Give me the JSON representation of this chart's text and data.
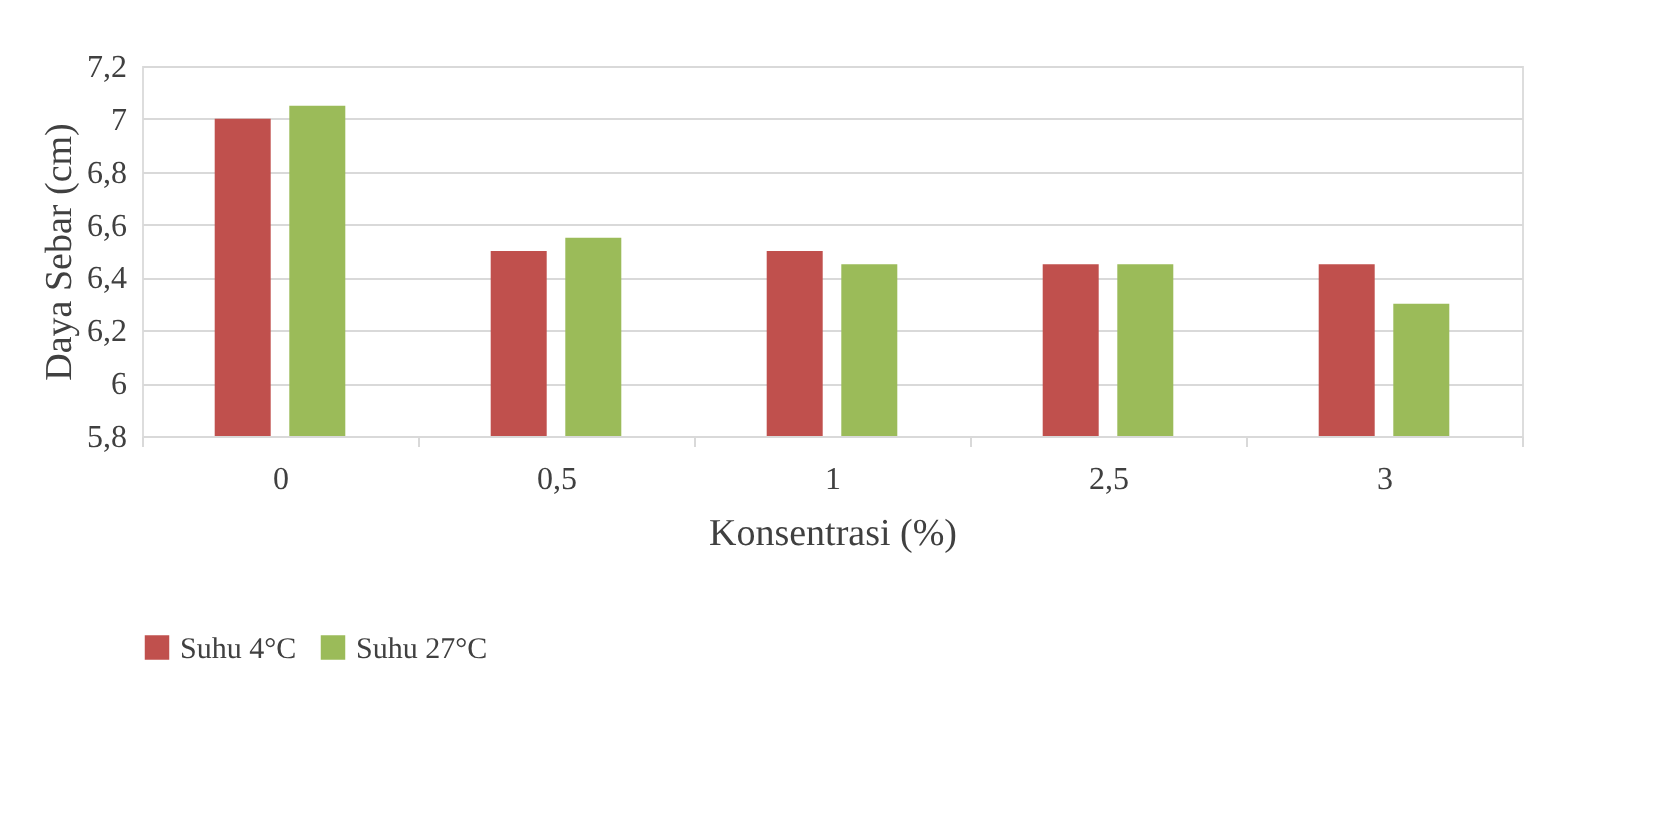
{
  "chart_data": {
    "type": "bar",
    "xlabel": "Konsentrasi (%)",
    "ylabel": "Daya Sebar (cm)",
    "categories": [
      "0",
      "0,5",
      "1",
      "2,5",
      "3"
    ],
    "series": [
      {
        "name": "Suhu 4°C",
        "color": "#c0504d",
        "values": [
          7.0,
          6.5,
          6.5,
          6.45,
          6.45
        ]
      },
      {
        "name": "Suhu 27°C",
        "color": "#9bbb59",
        "values": [
          7.05,
          6.55,
          6.45,
          6.45,
          6.3
        ]
      }
    ],
    "ylim": [
      5.8,
      7.2
    ],
    "yticks": [
      {
        "value": 5.8,
        "label": "5,8"
      },
      {
        "value": 6,
        "label": "6"
      },
      {
        "value": 6.2,
        "label": "6,2"
      },
      {
        "value": 6.4,
        "label": "6,4"
      },
      {
        "value": 6.6,
        "label": "6,6"
      },
      {
        "value": 6.8,
        "label": "6,8"
      },
      {
        "value": 7,
        "label": "7"
      },
      {
        "value": 7.2,
        "label": "7,2"
      }
    ],
    "grid": "y",
    "legend": "bottom"
  }
}
